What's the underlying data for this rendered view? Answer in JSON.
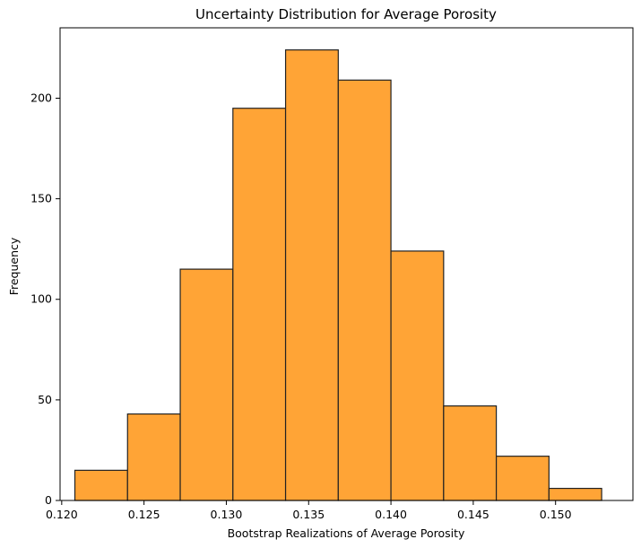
{
  "chart_data": {
    "type": "bar",
    "title": "Uncertainty Distribution for Average Porosity",
    "xlabel": "Bootstrap Realizations of Average Porosity",
    "ylabel": "Frequency",
    "bin_edges": [
      0.1208,
      0.124,
      0.1272,
      0.1304,
      0.1336,
      0.1368,
      0.14,
      0.1432,
      0.1464,
      0.1496,
      0.1528
    ],
    "values": [
      15,
      43,
      115,
      195,
      224,
      209,
      124,
      47,
      22,
      6
    ],
    "xlim": [
      0.1199,
      0.1547
    ],
    "ylim": [
      0,
      235
    ],
    "xticks": [
      0.12,
      0.125,
      0.13,
      0.135,
      0.14,
      0.145,
      0.15
    ],
    "xtick_labels": [
      "0.120",
      "0.125",
      "0.130",
      "0.135",
      "0.140",
      "0.145",
      "0.150"
    ],
    "yticks": [
      0,
      50,
      100,
      150,
      200
    ],
    "ytick_labels": [
      "0",
      "50",
      "100",
      "150",
      "200"
    ],
    "grid": false,
    "colors": {
      "bar_fill": "#ffa436",
      "bar_edge": "#222222"
    }
  }
}
